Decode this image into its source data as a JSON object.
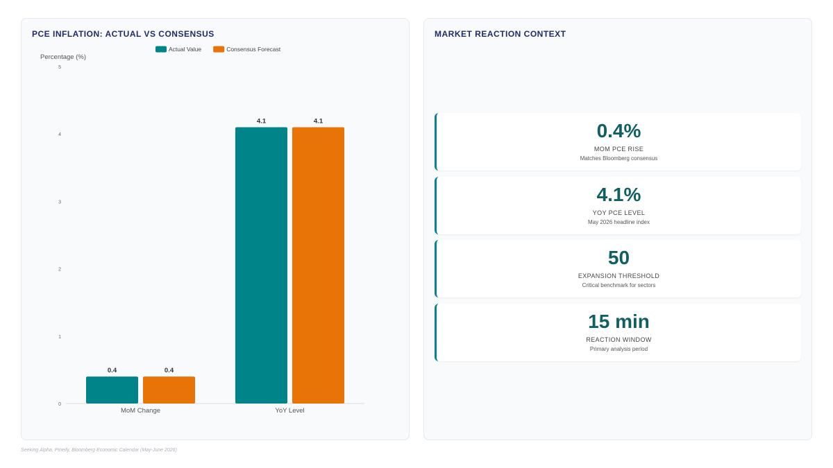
{
  "chart_panel": {
    "title": "PCE INFLATION: ACTUAL VS CONSENSUS"
  },
  "chart_data": {
    "type": "bar",
    "title": "PCE INFLATION: ACTUAL VS CONSENSUS",
    "categories": [
      "MoM Change",
      "YoY Level"
    ],
    "series": [
      {
        "name": "Actual Value",
        "values": [
          0.4,
          4.1
        ],
        "color": "#00848a"
      },
      {
        "name": "Consensus Forecast",
        "values": [
          0.4,
          4.1
        ],
        "color": "#e87408"
      }
    ],
    "ylabel": "Percentage (%)",
    "xlabel": "",
    "ylim": [
      0,
      5
    ],
    "yticks": [
      "0",
      "1",
      "2",
      "3",
      "4",
      "5"
    ],
    "data_labels": true,
    "grid": false,
    "legend": "top-center"
  },
  "context_panel": {
    "title": "MARKET REACTION CONTEXT",
    "cards": [
      {
        "value": "0.4%",
        "label": "MOM PCE RISE",
        "sub": "Matches Bloomberg consensus"
      },
      {
        "value": "4.1%",
        "label": "YOY PCE LEVEL",
        "sub": "May 2026 headline index"
      },
      {
        "value": "50",
        "label": "EXPANSION THRESHOLD",
        "sub": "Critical benchmark for sectors"
      },
      {
        "value": "15 min",
        "label": "REACTION WINDOW",
        "sub": "Primary analysis period"
      }
    ]
  },
  "footer": {
    "source": "Seeking Alpha, Pineify, Bloomberg Economic Calendar (May-June 2026)"
  }
}
